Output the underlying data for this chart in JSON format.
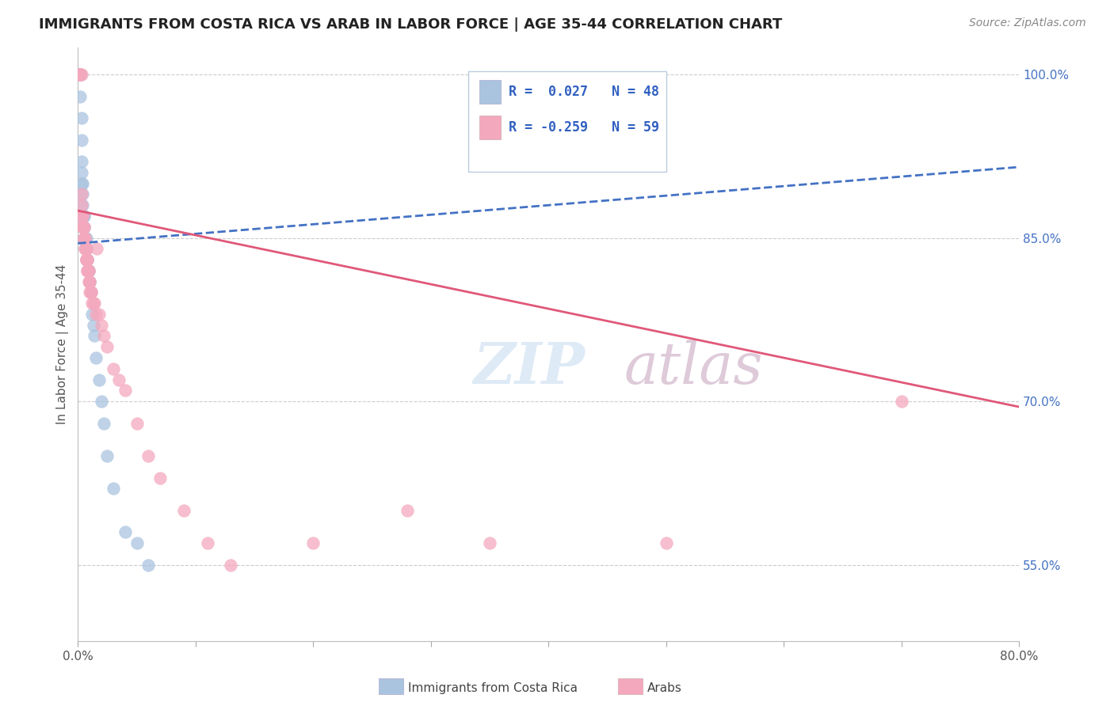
{
  "title": "IMMIGRANTS FROM COSTA RICA VS ARAB IN LABOR FORCE | AGE 35-44 CORRELATION CHART",
  "source": "Source: ZipAtlas.com",
  "ylabel": "In Labor Force | Age 35-44",
  "x_min": 0.0,
  "x_max": 0.8,
  "y_min": 0.48,
  "y_max": 1.025,
  "y_ticks_right": [
    0.55,
    0.7,
    0.85,
    1.0
  ],
  "y_tick_labels_right": [
    "55.0%",
    "70.0%",
    "85.0%",
    "100.0%"
  ],
  "legend_r_blue": "R =  0.027",
  "legend_n_blue": "N = 48",
  "legend_r_pink": "R = -0.259",
  "legend_n_pink": "N = 59",
  "blue_color": "#aac4e0",
  "pink_color": "#f4a8be",
  "trend_blue_color": "#4472c4",
  "trend_pink_color": "#e05878",
  "legend_text_color": "#3060c0",
  "watermark_zip": "ZIP",
  "watermark_atlas": "atlas",
  "watermark_color_zip": "#c8ddf0",
  "watermark_color_atlas": "#c8a8c0",
  "blue_x": [
    0.001,
    0.001,
    0.001,
    0.002,
    0.002,
    0.002,
    0.002,
    0.002,
    0.003,
    0.003,
    0.003,
    0.003,
    0.003,
    0.004,
    0.004,
    0.004,
    0.004,
    0.005,
    0.005,
    0.005,
    0.005,
    0.005,
    0.006,
    0.006,
    0.006,
    0.007,
    0.007,
    0.007,
    0.007,
    0.008,
    0.008,
    0.009,
    0.009,
    0.01,
    0.01,
    0.011,
    0.012,
    0.013,
    0.014,
    0.015,
    0.018,
    0.02,
    0.022,
    0.025,
    0.03,
    0.04,
    0.05,
    0.06
  ],
  "blue_y": [
    1.0,
    1.0,
    1.0,
    1.0,
    1.0,
    1.0,
    1.0,
    0.98,
    0.96,
    0.94,
    0.92,
    0.91,
    0.9,
    0.9,
    0.89,
    0.88,
    0.87,
    0.87,
    0.87,
    0.86,
    0.86,
    0.85,
    0.85,
    0.85,
    0.85,
    0.85,
    0.84,
    0.84,
    0.83,
    0.83,
    0.83,
    0.82,
    0.82,
    0.81,
    0.81,
    0.8,
    0.78,
    0.77,
    0.76,
    0.74,
    0.72,
    0.7,
    0.68,
    0.65,
    0.62,
    0.58,
    0.57,
    0.55
  ],
  "pink_x": [
    0.001,
    0.001,
    0.002,
    0.003,
    0.003,
    0.003,
    0.003,
    0.004,
    0.004,
    0.004,
    0.004,
    0.005,
    0.005,
    0.005,
    0.005,
    0.006,
    0.006,
    0.006,
    0.006,
    0.007,
    0.007,
    0.007,
    0.007,
    0.007,
    0.008,
    0.008,
    0.008,
    0.008,
    0.009,
    0.009,
    0.009,
    0.01,
    0.01,
    0.01,
    0.011,
    0.011,
    0.012,
    0.013,
    0.014,
    0.015,
    0.016,
    0.018,
    0.02,
    0.022,
    0.025,
    0.03,
    0.035,
    0.04,
    0.05,
    0.06,
    0.07,
    0.09,
    0.11,
    0.13,
    0.2,
    0.28,
    0.35,
    0.5,
    0.7
  ],
  "pink_y": [
    1.0,
    1.0,
    1.0,
    1.0,
    0.89,
    0.88,
    0.87,
    0.87,
    0.87,
    0.86,
    0.86,
    0.86,
    0.86,
    0.85,
    0.85,
    0.85,
    0.85,
    0.84,
    0.84,
    0.84,
    0.84,
    0.83,
    0.83,
    0.83,
    0.83,
    0.83,
    0.82,
    0.82,
    0.82,
    0.82,
    0.81,
    0.81,
    0.81,
    0.8,
    0.8,
    0.8,
    0.79,
    0.79,
    0.79,
    0.78,
    0.84,
    0.78,
    0.77,
    0.76,
    0.75,
    0.73,
    0.72,
    0.71,
    0.68,
    0.65,
    0.63,
    0.6,
    0.57,
    0.55,
    0.57,
    0.6,
    0.57,
    0.57,
    0.7
  ],
  "trend_blue_x0": 0.0,
  "trend_blue_x1": 0.8,
  "trend_blue_y0": 0.845,
  "trend_blue_y1": 0.915,
  "trend_pink_x0": 0.0,
  "trend_pink_x1": 0.8,
  "trend_pink_y0": 0.875,
  "trend_pink_y1": 0.695
}
